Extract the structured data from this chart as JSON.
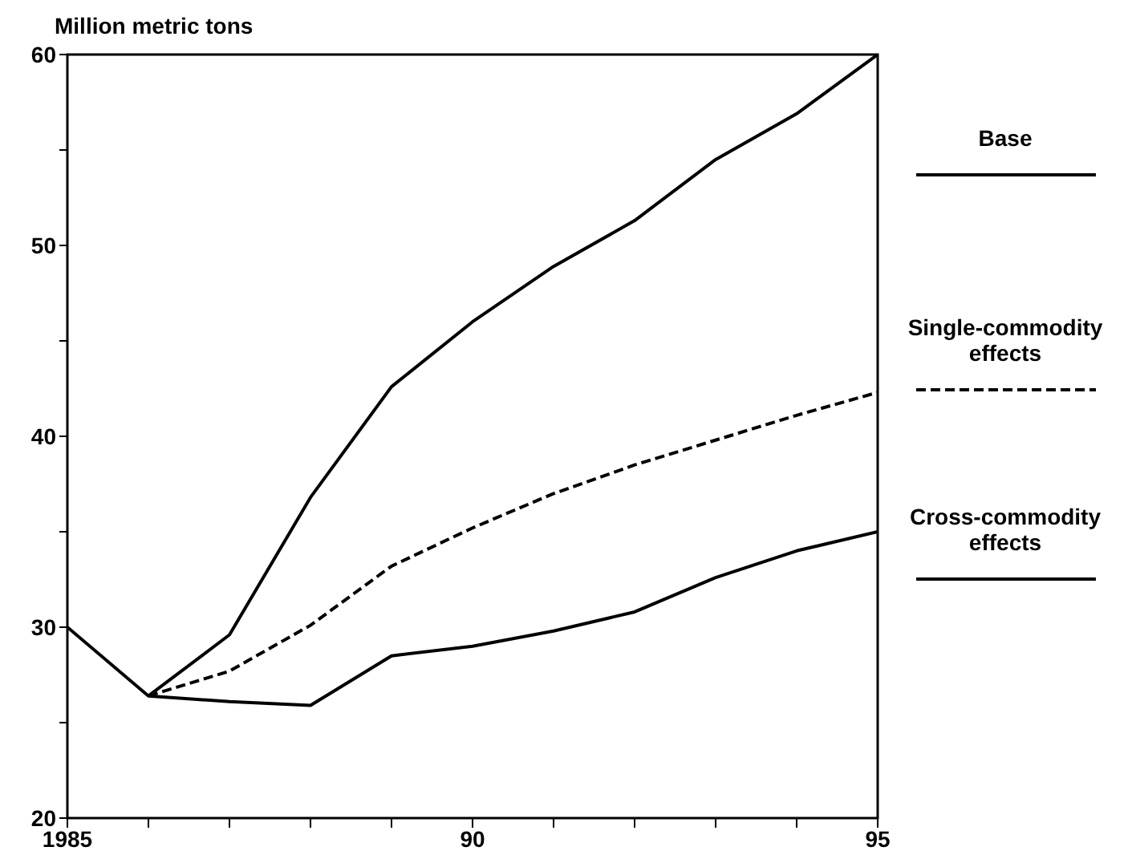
{
  "chart_data": {
    "type": "line",
    "ylabel": "Million metric tons",
    "x": [
      1985,
      1986,
      1987,
      1988,
      1989,
      1990,
      1991,
      1992,
      1993,
      1994,
      1995
    ],
    "series": [
      {
        "name": "Base",
        "color": "#000000",
        "line_style": "solid",
        "values": [
          null,
          26.4,
          29.6,
          36.8,
          42.6,
          46.0,
          48.9,
          51.3,
          54.5,
          56.9,
          60.0
        ]
      },
      {
        "name": "Single-commodity effects",
        "color": "#000000",
        "line_style": "dashed",
        "values": [
          null,
          26.4,
          27.7,
          30.1,
          33.2,
          35.2,
          37.0,
          38.5,
          39.8,
          41.1,
          42.3
        ]
      },
      {
        "name": "Cross-commodity effects",
        "color": "#000000",
        "line_style": "solid",
        "values": [
          30.0,
          26.4,
          26.1,
          25.9,
          28.5,
          29.0,
          29.8,
          30.8,
          32.6,
          34.0,
          35.0
        ]
      }
    ],
    "xlim": [
      1985,
      1995
    ],
    "xticks": [
      1985,
      {
        "value": 1986,
        "label": null
      },
      {
        "value": 1987,
        "label": null
      },
      {
        "value": 1988,
        "label": null
      },
      {
        "value": 1989,
        "label": null
      },
      {
        "value": 1990,
        "label": "90"
      },
      {
        "value": 1991,
        "label": null
      },
      {
        "value": 1992,
        "label": null
      },
      {
        "value": 1993,
        "label": null
      },
      {
        "value": 1994,
        "label": null
      },
      {
        "value": 1995,
        "label": "95"
      }
    ],
    "ylim": [
      20,
      60
    ],
    "yticks": [
      20,
      {
        "value": 25,
        "label": null
      },
      30,
      {
        "value": 35,
        "label": null
      },
      40,
      {
        "value": 45,
        "label": null
      },
      50,
      {
        "value": 55,
        "label": null
      },
      60
    ],
    "grid": false,
    "legend": "right",
    "marker": "none"
  }
}
